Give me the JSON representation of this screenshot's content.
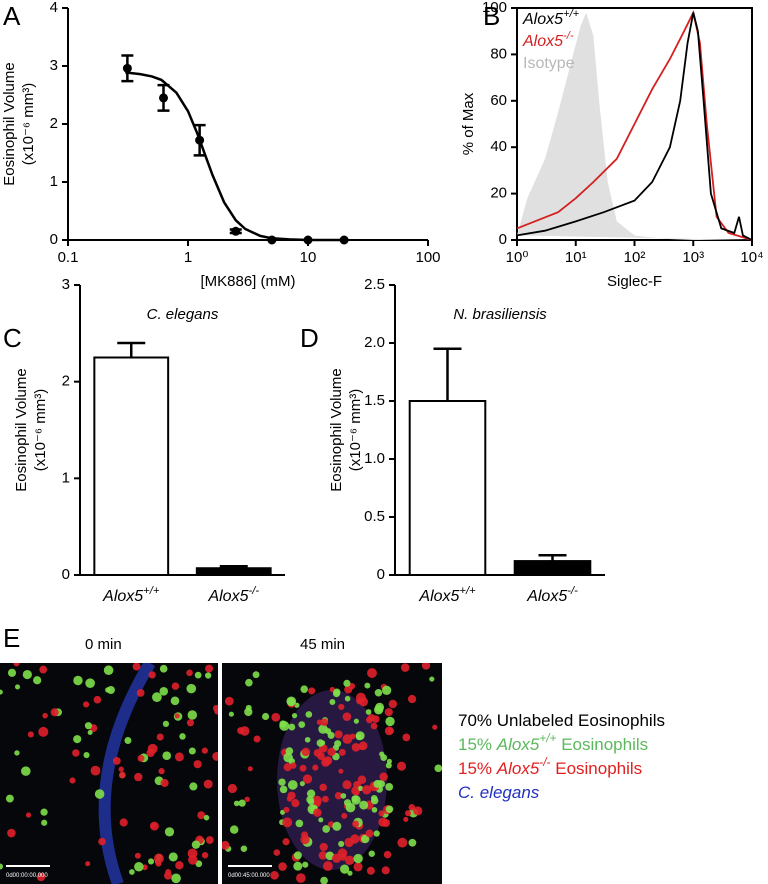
{
  "chart_data": [
    {
      "label": "A",
      "type": "scatter",
      "xlabel": "[MK886] (mM)",
      "ylabel": [
        "Eosinophil Volume",
        "(x10⁻⁶ mm³)"
      ],
      "xscale": "log",
      "xlim": [
        0.1,
        100
      ],
      "xticks": [
        0.1,
        1,
        10,
        100
      ],
      "ylim": [
        0,
        4
      ],
      "yticks": [
        0,
        1,
        2,
        3,
        4
      ],
      "series": [
        {
          "mode": "markers",
          "color": "#000000",
          "x": [
            0.3125,
            0.625,
            1.25,
            2.5,
            5,
            10,
            20
          ],
          "values": [
            2.96,
            2.45,
            1.72,
            0.15,
            0,
            0,
            0
          ],
          "errors": [
            0.22,
            0.22,
            0.26,
            0.03,
            0,
            0,
            0
          ]
        },
        {
          "mode": "line",
          "color": "#000000",
          "x": [
            0.3,
            0.4,
            0.5,
            0.6,
            0.8,
            1,
            1.2,
            1.4,
            1.6,
            2,
            2.5,
            3,
            4,
            5,
            7,
            10,
            15,
            20
          ],
          "values": [
            2.89,
            2.86,
            2.82,
            2.76,
            2.54,
            2.22,
            1.83,
            1.45,
            1.12,
            0.65,
            0.34,
            0.19,
            0.07,
            0.03,
            0.01,
            0,
            0,
            0
          ]
        }
      ]
    },
    {
      "label": "B",
      "type": "line",
      "xlabel": "Siglec-F",
      "ylabel": [
        "% of Max"
      ],
      "xscale": "log",
      "xlim": [
        1,
        10000
      ],
      "xticks": [
        {
          "value": 1,
          "label": "10⁰"
        },
        {
          "value": 10,
          "label": "10¹"
        },
        {
          "value": 100,
          "label": "10²"
        },
        {
          "value": 1000,
          "label": "10³"
        },
        {
          "value": 10000,
          "label": "10⁴"
        }
      ],
      "ylim": [
        0,
        100
      ],
      "yticks": [
        0,
        20,
        40,
        60,
        80,
        100
      ],
      "legend": "top-left",
      "series": [
        {
          "name": "Alox5+/+",
          "color": "#000000",
          "x": [
            1,
            3,
            10,
            30,
            100,
            200,
            400,
            600,
            800,
            1000,
            1200,
            1500,
            2000,
            3000,
            5000,
            6000,
            7000,
            10000
          ],
          "values": [
            2,
            4,
            8,
            12,
            17,
            25,
            40,
            60,
            85,
            98,
            90,
            60,
            20,
            5,
            3,
            10,
            2,
            0
          ]
        },
        {
          "name": "Alox5-/-",
          "color": "#d42020",
          "x": [
            1,
            2,
            5,
            10,
            20,
            50,
            100,
            200,
            400,
            700,
            1000,
            1300,
            1700,
            2500,
            4000,
            10000
          ],
          "values": [
            5,
            8,
            12,
            18,
            25,
            35,
            50,
            65,
            78,
            90,
            98,
            85,
            50,
            10,
            3,
            0
          ]
        },
        {
          "name": "Isotype",
          "color": "#b8b8b8",
          "fill": "#e0e0e0",
          "x": [
            1,
            1.5,
            2,
            3,
            5,
            8,
            12,
            15,
            20,
            25,
            35,
            50,
            100,
            300,
            1000,
            10000
          ],
          "values": [
            2,
            18,
            25,
            35,
            55,
            75,
            92,
            98,
            88,
            60,
            25,
            8,
            2,
            0.5,
            0,
            0
          ]
        }
      ]
    },
    {
      "label": "C",
      "type": "bar",
      "title": "C. elegans",
      "ylabel": [
        "Eosinophil Volume",
        "(x10⁻⁶ mm³)"
      ],
      "categories": [
        "Alox5+/+",
        "Alox5-/-"
      ],
      "values": [
        2.25,
        0.07
      ],
      "errors": [
        0.15,
        0.02
      ],
      "colors": [
        "#ffffff",
        "#000000"
      ],
      "ylim": [
        0,
        3
      ],
      "yticks": [
        0,
        1,
        2,
        3
      ]
    },
    {
      "label": "D",
      "type": "bar",
      "title": "N. brasiliensis",
      "ylabel": [
        "Eosinophil Volume",
        "(x10⁻⁶ mm³)"
      ],
      "categories": [
        "Alox5+/+",
        "Alox5-/-"
      ],
      "values": [
        1.5,
        0.12
      ],
      "errors": [
        0.45,
        0.05
      ],
      "colors": [
        "#ffffff",
        "#000000"
      ],
      "ylim": [
        0,
        2.5
      ],
      "yticks": [
        0,
        0.5,
        {
          "value": 1,
          "label": "1.0"
        },
        1.5,
        {
          "value": 2,
          "label": "2.0"
        },
        2.5
      ]
    }
  ],
  "panel_e": {
    "label": "E",
    "frames": [
      {
        "time": "0 min",
        "stamp": "0d00:00:00.000"
      },
      {
        "time": "45 min",
        "stamp": "0d00:45:00.000"
      }
    ],
    "legend": [
      {
        "text": "70% Unlabeled Eosinophils",
        "color": "#000000"
      },
      {
        "text": "15% Alox5+/+ Eosinophils",
        "color": "#5cb85c"
      },
      {
        "text": "15% Alox5-/- Eosinophils",
        "color": "#e02020"
      },
      {
        "text": "C. elegans",
        "color": "#2030c0"
      }
    ]
  }
}
